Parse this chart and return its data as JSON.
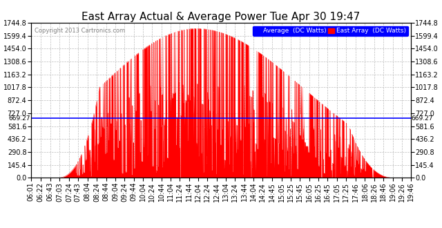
{
  "title": "East Array Actual & Average Power Tue Apr 30 19:47",
  "copyright": "Copyright 2013 Cartronics.com",
  "legend_labels": [
    "Average  (DC Watts)",
    "East Array  (DC Watts)"
  ],
  "legend_colors": [
    "blue",
    "red"
  ],
  "ymin": 0.0,
  "ymax": 1744.8,
  "yticks": [
    0.0,
    145.4,
    290.8,
    436.2,
    581.6,
    727.0,
    872.4,
    1017.8,
    1163.2,
    1308.6,
    1454.0,
    1599.4,
    1744.8
  ],
  "avg_line_y": 669.27,
  "avg_line_label": "669.27",
  "bg_color": "#ffffff",
  "plot_bg_color": "#ffffff",
  "grid_color": "#bbbbbb",
  "fill_color": "#ff0000",
  "line_color": "#0000ff",
  "title_fontsize": 11,
  "tick_label_fontsize": 7,
  "time_labels": [
    "06:01",
    "06:22",
    "06:43",
    "07:03",
    "07:24",
    "07:43",
    "08:04",
    "08:24",
    "08:44",
    "09:04",
    "09:24",
    "09:44",
    "10:04",
    "10:24",
    "10:44",
    "11:04",
    "11:24",
    "11:44",
    "12:04",
    "12:24",
    "12:44",
    "13:04",
    "13:24",
    "13:44",
    "14:04",
    "14:24",
    "14:45",
    "15:05",
    "15:25",
    "15:45",
    "16:05",
    "16:25",
    "16:45",
    "17:05",
    "17:25",
    "17:46",
    "18:06",
    "18:26",
    "18:46",
    "19:06",
    "19:26",
    "19:46"
  ]
}
